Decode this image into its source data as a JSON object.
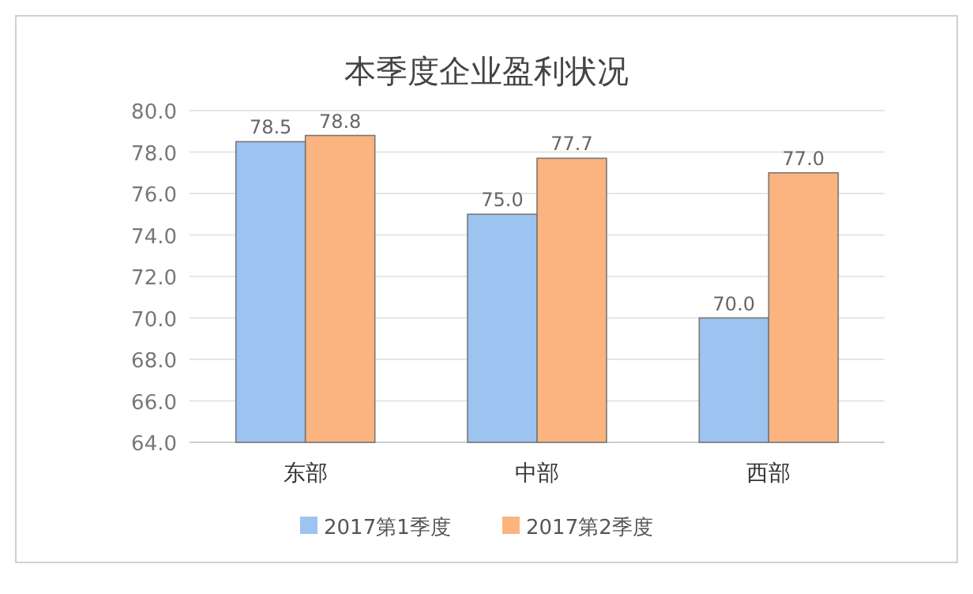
{
  "chart_data": {
    "type": "bar",
    "title": "本季度企业盈利状况",
    "categories": [
      "东部",
      "中部",
      "西部"
    ],
    "series": [
      {
        "name": "2017第1季度",
        "color": "#9dc3f0",
        "values": [
          78.5,
          75.0,
          70.0
        ],
        "value_labels": [
          "78.5",
          "75.0",
          "70.0"
        ]
      },
      {
        "name": "2017第2季度",
        "color": "#fbb47f",
        "values": [
          78.8,
          77.7,
          77.0
        ],
        "value_labels": [
          "78.8",
          "77.7",
          "77.0"
        ]
      }
    ],
    "ylim": [
      64,
      80
    ],
    "yticks": [
      {
        "value": 64,
        "label": "64.0"
      },
      {
        "value": 66,
        "label": "66.0"
      },
      {
        "value": 68,
        "label": "68.0"
      },
      {
        "value": 70,
        "label": "70.0"
      },
      {
        "value": 72,
        "label": "72.0"
      },
      {
        "value": 74,
        "label": "74.0"
      },
      {
        "value": 76,
        "label": "76.0"
      },
      {
        "value": 78,
        "label": "78.0"
      },
      {
        "value": 80,
        "label": "80.0"
      }
    ],
    "grid": "y",
    "legend": "bottom"
  }
}
